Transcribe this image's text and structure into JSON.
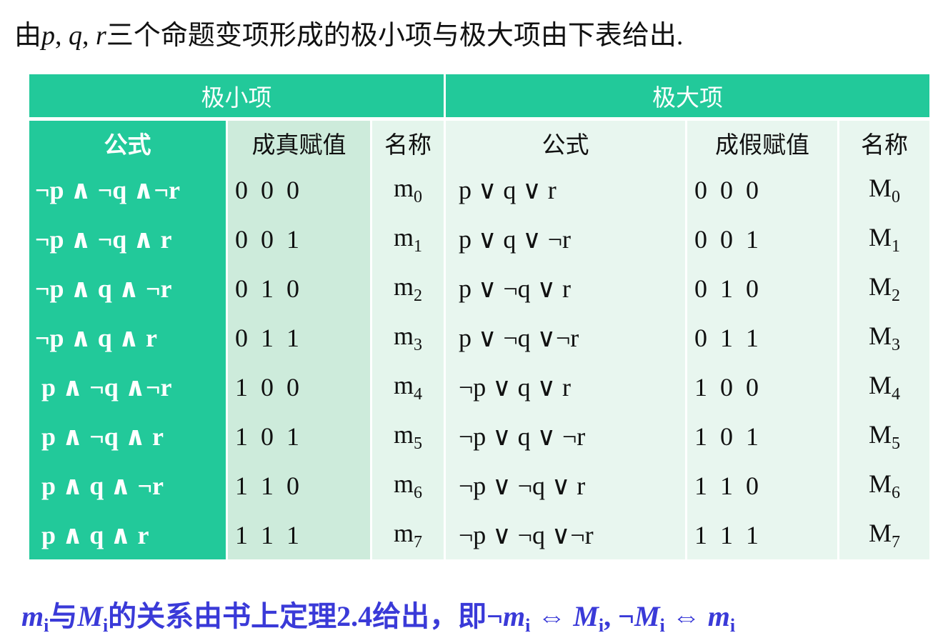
{
  "title": {
    "parts": [
      "由",
      "p",
      ", ",
      "q",
      ", ",
      "r",
      "三个命题变项形成的极小项与极大项由下表给出."
    ]
  },
  "table": {
    "groups": [
      "极小项",
      "极大项"
    ],
    "headers": [
      "公式",
      "成真赋值",
      "名称",
      "公式",
      "成假赋值",
      "名称"
    ],
    "rows": [
      [
        "¬p ∧ ¬q ∧¬r",
        "0  0  0",
        {
          "base": "m",
          "sub": "0"
        },
        "p ∨ q ∨ r",
        "0  0  0",
        {
          "base": "M",
          "sub": "0"
        }
      ],
      [
        "¬p ∧ ¬q ∧ r",
        "0  0  1",
        {
          "base": "m",
          "sub": "1"
        },
        "p ∨ q ∨ ¬r",
        "0  0  1",
        {
          "base": "M",
          "sub": "1"
        }
      ],
      [
        "¬p ∧ q ∧ ¬r",
        "0  1  0",
        {
          "base": "m",
          "sub": "2"
        },
        "p ∨ ¬q ∨ r",
        "0  1  0",
        {
          "base": "M",
          "sub": "2"
        }
      ],
      [
        "¬p ∧ q ∧ r",
        "0  1  1",
        {
          "base": "m",
          "sub": "3"
        },
        "p ∨ ¬q ∨¬r",
        "0  1  1",
        {
          "base": "M",
          "sub": "3"
        }
      ],
      [
        " p ∧ ¬q ∧¬r",
        "1  0  0",
        {
          "base": "m",
          "sub": "4"
        },
        "¬p ∨ q ∨ r",
        "1  0  0",
        {
          "base": "M",
          "sub": "4"
        }
      ],
      [
        " p ∧ ¬q ∧ r",
        "1  0  1",
        {
          "base": "m",
          "sub": "5"
        },
        "¬p ∨ q ∨ ¬r",
        "1  0  1",
        {
          "base": "M",
          "sub": "5"
        }
      ],
      [
        " p ∧ q ∧ ¬r",
        "1  1  0",
        {
          "base": "m",
          "sub": "6"
        },
        "¬p ∨ ¬q ∨ r",
        "1  1  0",
        {
          "base": "M",
          "sub": "6"
        }
      ],
      [
        " p ∧ q ∧ r",
        "1  1  1",
        {
          "base": "m",
          "sub": "7"
        },
        "¬p ∨ ¬q ∨¬r",
        "1  1  1",
        {
          "base": "M",
          "sub": "7"
        }
      ]
    ]
  },
  "footer": {
    "parts": [
      "m",
      "i",
      "与",
      "M",
      "i",
      "的关系由书上定理2.4给出，即¬",
      "m",
      "i",
      " ⇔ ",
      "M",
      "i",
      ",   ¬",
      "M",
      "i",
      " ⇔ ",
      "m",
      "i"
    ]
  }
}
